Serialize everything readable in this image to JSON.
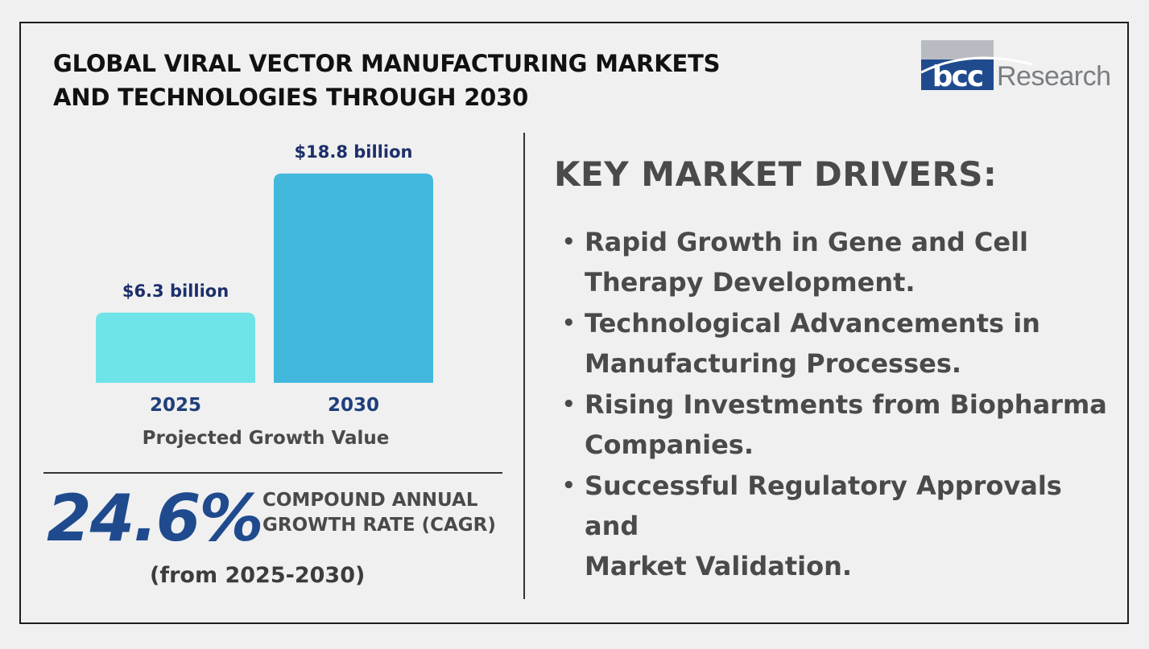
{
  "title_lines": [
    "GLOBAL VIRAL VECTOR MANUFACTURING MARKETS",
    "AND TECHNOLOGIES THROUGH 2030"
  ],
  "logo": {
    "mark": "bcc",
    "text": "Research"
  },
  "chart_data": {
    "type": "bar",
    "categories": [
      "2025",
      "2030"
    ],
    "values": [
      6.3,
      18.8
    ],
    "value_labels": [
      "$6.3 billion",
      "$18.8 billion"
    ],
    "xlabel": "Projected Growth Value",
    "colors": [
      "#6ee3e8",
      "#42b8dc"
    ],
    "ylim": [
      0,
      19.5
    ]
  },
  "cagr": {
    "value": "24.6%",
    "label_lines": [
      "COMPOUND ANNUAL",
      "GROWTH RATE (CAGR)"
    ],
    "period": "(from 2025-2030)"
  },
  "drivers": {
    "heading": "KEY MARKET DRIVERS:",
    "items": [
      [
        "Rapid Growth in Gene and Cell",
        "Therapy Development."
      ],
      [
        "Technological Advancements in",
        "Manufacturing Processes."
      ],
      [
        "Rising Investments from Biopharma",
        "Companies."
      ],
      [
        "Successful Regulatory Approvals and",
        "Market Validation."
      ]
    ]
  },
  "colors": {
    "accent_dark_blue": "#1f4b8e",
    "label_navy": "#1d2f6b",
    "logo_blue": "#1f4b8e",
    "logo_gray": "#7a7e83"
  }
}
